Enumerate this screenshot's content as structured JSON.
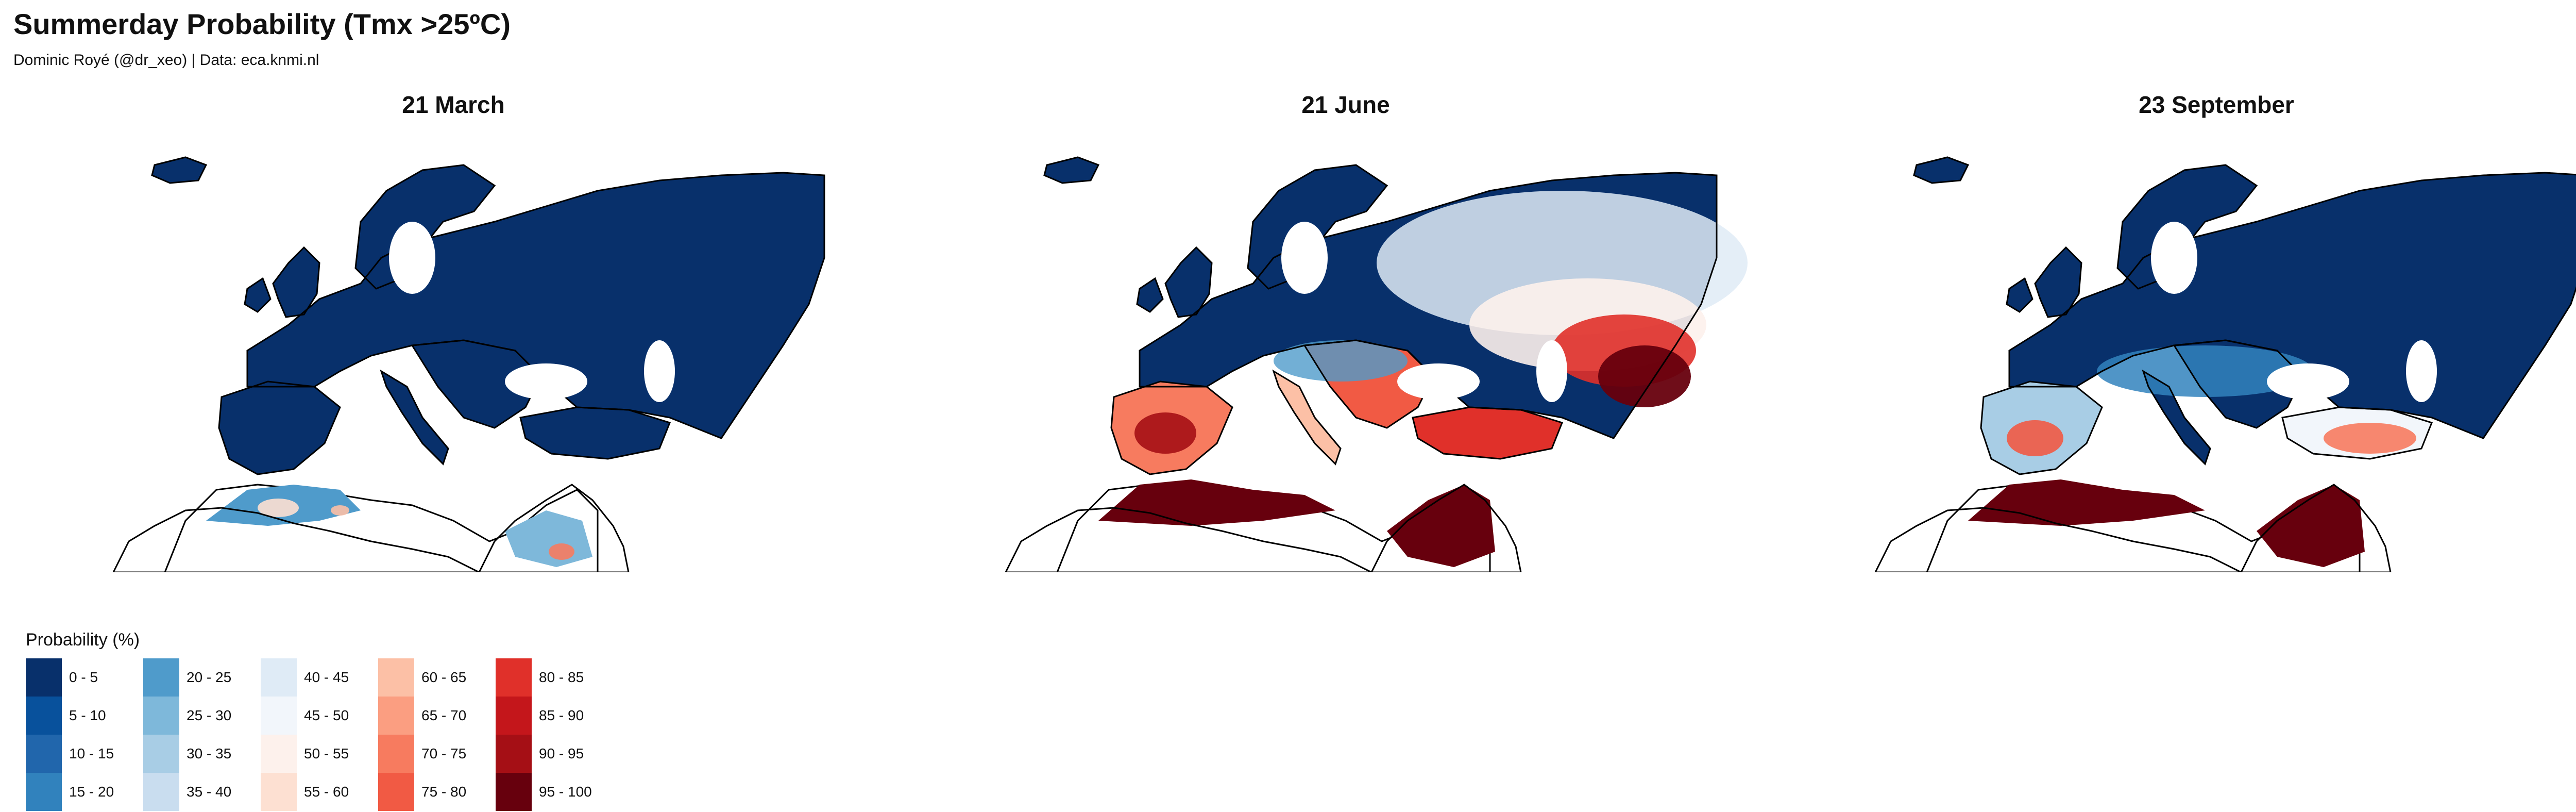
{
  "title": "Summerday Probability (Tmx >25ºC)",
  "subtitle": "Dominic Royé (@dr_xeo) | Data: eca.knmi.nl",
  "panels": [
    {
      "title": "21 March",
      "scenario": "march"
    },
    {
      "title": "21 June",
      "scenario": "june"
    },
    {
      "title": "23 September",
      "scenario": "september"
    }
  ],
  "legend": {
    "title": "Probability (%)",
    "classes": [
      {
        "label": "0 - 5",
        "color": "#08306b"
      },
      {
        "label": "5 - 10",
        "color": "#08519c"
      },
      {
        "label": "10 - 15",
        "color": "#2166ac"
      },
      {
        "label": "15 - 20",
        "color": "#3182bd"
      },
      {
        "label": "20 - 25",
        "color": "#4f9bcb"
      },
      {
        "label": "25 - 30",
        "color": "#7eb8da"
      },
      {
        "label": "30 - 35",
        "color": "#a8cde5"
      },
      {
        "label": "35 - 40",
        "color": "#c9ddef"
      },
      {
        "label": "40 - 45",
        "color": "#dfebf6"
      },
      {
        "label": "45 - 50",
        "color": "#f2f6fb"
      },
      {
        "label": "50 - 55",
        "color": "#fdf1ec"
      },
      {
        "label": "55 - 60",
        "color": "#fde0d2"
      },
      {
        "label": "60 - 65",
        "color": "#fcc0a6"
      },
      {
        "label": "65 - 70",
        "color": "#fb9e81"
      },
      {
        "label": "70 - 75",
        "color": "#f77b5f"
      },
      {
        "label": "75 - 80",
        "color": "#f15a44"
      },
      {
        "label": "80 - 85",
        "color": "#e0302a"
      },
      {
        "label": "85 - 90",
        "color": "#c4161b"
      },
      {
        "label": "90 - 95",
        "color": "#a50f15"
      },
      {
        "label": "95 - 100",
        "color": "#67000d"
      }
    ]
  }
}
